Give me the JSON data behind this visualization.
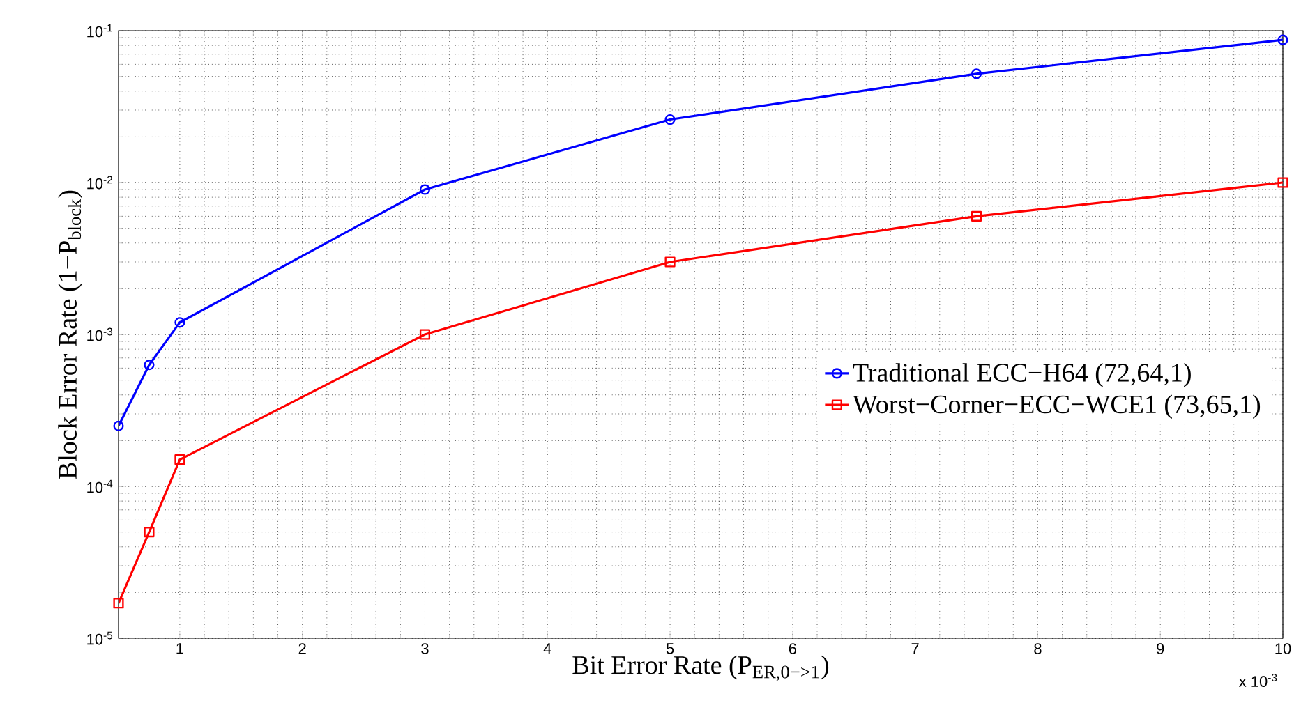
{
  "chart_data": {
    "type": "line",
    "xlabel": "Bit Error Rate (P$_{ER,0−>1}$)",
    "ylabel": "Block Error Rate (1−P$_{block}$)",
    "x": [
      0.5,
      0.75,
      1,
      3,
      5,
      7.5,
      10
    ],
    "series": [
      {
        "name": "Traditional ECC−H64 (72,64,1)",
        "color": "#0000ff",
        "marker": "circle",
        "values": [
          0.00025,
          0.00063,
          0.0012,
          0.009,
          0.026,
          0.052,
          0.087
        ]
      },
      {
        "name": "Worst−Corner−ECC−WCE1 (73,65,1)",
        "color": "#ff0000",
        "marker": "square",
        "values": [
          1.7e-05,
          5e-05,
          0.00015,
          0.001,
          0.003,
          0.006,
          0.01
        ]
      }
    ],
    "log": "y",
    "xlim": [
      0.5,
      10
    ],
    "xticks": [
      1,
      2,
      3,
      4,
      5,
      6,
      7,
      8,
      9,
      10
    ],
    "ylim": [
      1e-05,
      0.1
    ],
    "yticks": [
      {
        "value": 1e-05,
        "label": "10$^{-5}$"
      },
      {
        "value": 0.0001,
        "label": "10$^{-4}$"
      },
      {
        "value": 0.001,
        "label": "10$^{-3}$"
      },
      {
        "value": 0.01,
        "label": "10$^{-2}$"
      },
      {
        "value": 0.1,
        "label": "10$^{-1}$"
      }
    ],
    "grid": true,
    "legend": "right",
    "line_style": "solid",
    "annotations": [
      "x 10$^{-3}$"
    ]
  }
}
